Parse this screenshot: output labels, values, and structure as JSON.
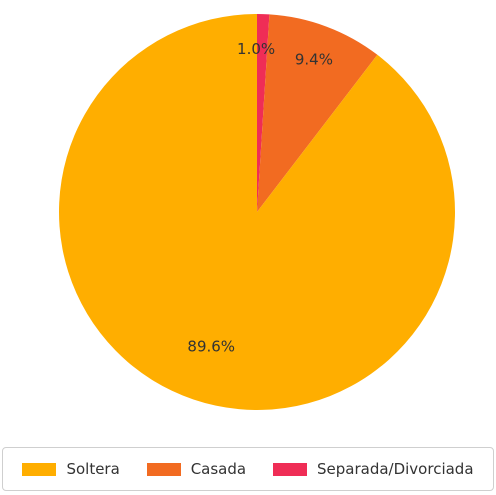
{
  "chart_data": {
    "type": "pie",
    "title": "",
    "start_angle_deg": 90,
    "direction": "clockwise",
    "categories": [
      "Soltera",
      "Casada",
      "Separada/Divorciada"
    ],
    "values": [
      89.6,
      9.4,
      1.0
    ],
    "labels": [
      "89.6%",
      "9.4%",
      "1.0%"
    ],
    "colors": [
      "#FFAE00",
      "#F26B21",
      "#EF2D56"
    ],
    "legend_position": "bottom"
  }
}
